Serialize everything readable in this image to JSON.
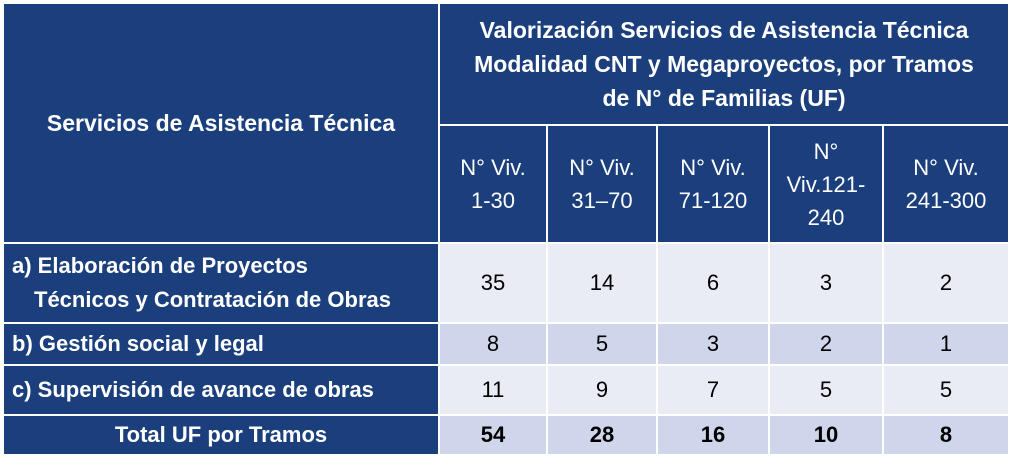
{
  "table": {
    "title": "Valorización Servicios de Asistencia Técnica Modalidad CNT y Megaproyectos, por Tramos de N° de Familias (UF)",
    "title_lines": [
      "Valorización Servicios de Asistencia Técnica",
      "Modalidad CNT y Megaproyectos, por Tramos",
      "de N° de Familias (UF)"
    ],
    "first_column_header": "Servicios de Asistencia Técnica",
    "columns": [
      {
        "lines": [
          "N° Viv.",
          "1-30"
        ]
      },
      {
        "lines": [
          "N° Viv.",
          "31–70"
        ]
      },
      {
        "lines": [
          "N° Viv.",
          "71-120"
        ]
      },
      {
        "lines": [
          "N°",
          "Viv.121-",
          "240"
        ]
      },
      {
        "lines": [
          "N° Viv.",
          "241-300"
        ]
      }
    ],
    "rows": [
      {
        "label_lines": [
          "a) Elaboración de Proyectos",
          "Técnicos y Contratación de Obras"
        ],
        "values": [
          "35",
          "14",
          "6",
          "3",
          "2"
        ]
      },
      {
        "label_lines": [
          "b) Gestión social y legal"
        ],
        "values": [
          "8",
          "5",
          "3",
          "2",
          "1"
        ]
      },
      {
        "label_lines": [
          "c) Supervisión de avance de obras"
        ],
        "values": [
          "11",
          "9",
          "7",
          "5",
          "5"
        ]
      },
      {
        "label_lines": [
          "Total UF por Tramos"
        ],
        "values": [
          "54",
          "28",
          "16",
          "10",
          "8"
        ]
      }
    ],
    "colors": {
      "header_bg": "#1b3f7d",
      "header_text": "#ffffff",
      "row_light": "#e9ebf5",
      "row_dark": "#cfd5ea",
      "border": "#ffffff"
    }
  }
}
